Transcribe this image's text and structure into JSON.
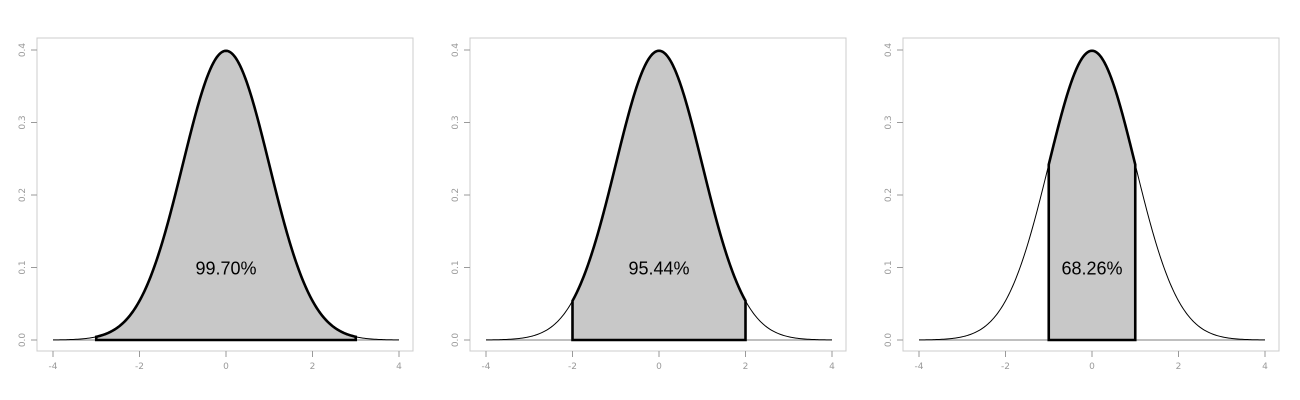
{
  "chart_data": [
    {
      "type": "area",
      "title": "",
      "xlabel": "",
      "ylabel": "",
      "xlim": [
        -4,
        4
      ],
      "ylim": [
        0,
        0.4
      ],
      "grid": false,
      "curve": "standard normal density",
      "shaded_interval": [
        -3,
        3
      ],
      "annotation": "99.70%",
      "xticks": [
        "-4",
        "-2",
        "0",
        "2",
        "4"
      ],
      "yticks": [
        "0.0",
        "0.1",
        "0.2",
        "0.3",
        "0.4"
      ],
      "colors": {
        "fill": "#c8c8c8",
        "line": "#000000",
        "frame": "#cccccc",
        "ticks": "#9a9a9a"
      }
    },
    {
      "type": "area",
      "title": "",
      "xlabel": "",
      "ylabel": "",
      "xlim": [
        -4,
        4
      ],
      "ylim": [
        0,
        0.4
      ],
      "grid": false,
      "curve": "standard normal density",
      "shaded_interval": [
        -2,
        2
      ],
      "annotation": "95.44%",
      "xticks": [
        "-4",
        "-2",
        "0",
        "2",
        "4"
      ],
      "yticks": [
        "0.0",
        "0.1",
        "0.2",
        "0.3",
        "0.4"
      ],
      "colors": {
        "fill": "#c8c8c8",
        "line": "#000000",
        "frame": "#cccccc",
        "ticks": "#9a9a9a"
      }
    },
    {
      "type": "area",
      "title": "",
      "xlabel": "",
      "ylabel": "",
      "xlim": [
        -4,
        4
      ],
      "ylim": [
        0,
        0.4
      ],
      "grid": false,
      "curve": "standard normal density",
      "shaded_interval": [
        -1,
        1
      ],
      "annotation": "68.26%",
      "xticks": [
        "-4",
        "-2",
        "0",
        "2",
        "4"
      ],
      "yticks": [
        "0.0",
        "0.1",
        "0.2",
        "0.3",
        "0.4"
      ],
      "colors": {
        "fill": "#c8c8c8",
        "line": "#000000",
        "frame": "#cccccc",
        "ticks": "#9a9a9a"
      }
    }
  ]
}
